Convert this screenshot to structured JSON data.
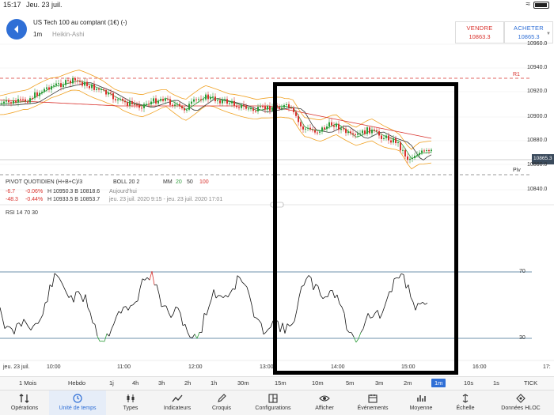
{
  "status": {
    "time": "15:17",
    "date": "Jeu. 23 juil."
  },
  "header": {
    "instrument": "US Tech 100 au comptant (1€) (-)",
    "timeframe": "1m",
    "chart_type": "Heikin-Ashi",
    "sell": {
      "label": "VENDRE",
      "price": "10863.3"
    },
    "buy": {
      "label": "ACHETER",
      "price": "10865.3"
    }
  },
  "price_axis": [
    "10960.0",
    "10940.0",
    "10920.0",
    "10900.0",
    "10880.0",
    "10860.0",
    "10840.0"
  ],
  "current_price": "10865.3",
  "levels": {
    "r1": "R1",
    "pivot": "Piv"
  },
  "indicators": {
    "line1": "PIVOT  QUOTIDIEN  (H+B+C)/3",
    "boll": "BOLL  20  2",
    "mm": "MM",
    "mm_20": "20",
    "mm_50": "50",
    "mm_100": "100",
    "row2_change": "-6.7",
    "row2_pct": "-0.06%",
    "row2_hb": "H 10950.3   B 10818.6",
    "row2_period": "Aujourd'hui",
    "row3_change": "-48.3",
    "row3_pct": "-0.44%",
    "row3_hb": "H 10933.5   B 10853.7",
    "row3_period": "jeu. 23 juil. 2020 9:15 - jeu. 23 juil. 2020 17:01"
  },
  "rsi": {
    "label": "RSI  14  70  30",
    "upper": "70",
    "lower": "30"
  },
  "time_axis": {
    "first": "jeu. 23 juil.",
    "ticks": [
      "10:00",
      "11:00",
      "12:00",
      "13:00",
      "14:00",
      "15:00",
      "16:00",
      "17:"
    ]
  },
  "timeframes": [
    "1 Mois",
    "Hebdo",
    "1j",
    "4h",
    "3h",
    "2h",
    "1h",
    "30m",
    "15m",
    "10m",
    "5m",
    "3m",
    "2m",
    "1m",
    "10s",
    "1s",
    "TICK"
  ],
  "active_timeframe": "1m",
  "toolbar": [
    "Opérations",
    "Unité de temps",
    "Types",
    "Indicateurs",
    "Croquis",
    "Configurations",
    "Afficher",
    "Événements",
    "Moyenne",
    "Échelle",
    "Données HLOC"
  ],
  "colors": {
    "accent": "#2f6fd6",
    "sell": "#d9322d",
    "up": "#2e9d3b",
    "down": "#d9322d",
    "ma20": "#2e9d3b",
    "ma50": "#333333",
    "ma100": "#d9322d",
    "boll": "#f0a020"
  }
}
